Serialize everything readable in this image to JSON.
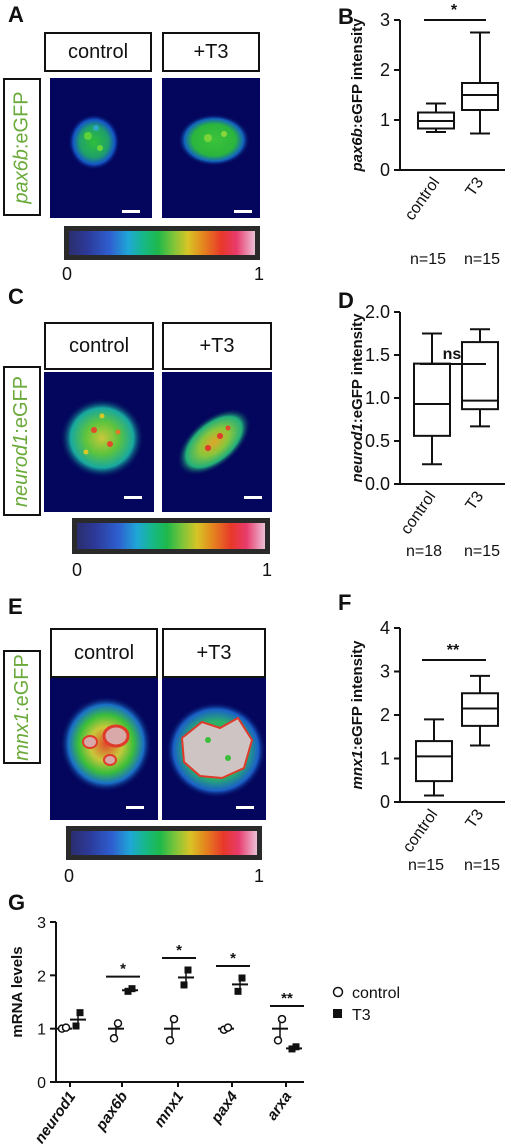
{
  "panels": {
    "A": {
      "letter": "A",
      "gene": "pax6b",
      "reporter_suffix": ":eGFP",
      "conditions": [
        "control",
        "+T3"
      ],
      "colorbar_min": "0",
      "colorbar_max": "1"
    },
    "C": {
      "letter": "C",
      "gene": "neurod1",
      "reporter_suffix": ":eGFP",
      "conditions": [
        "control",
        "+T3"
      ],
      "colorbar_min": "0",
      "colorbar_max": "1"
    },
    "E": {
      "letter": "E",
      "gene": "mnx1",
      "reporter_suffix": ":eGFP",
      "conditions": [
        "control",
        "+T3"
      ],
      "colorbar_min": "0",
      "colorbar_max": "1"
    }
  },
  "chart_data": [
    {
      "panel": "B",
      "type": "box",
      "ylabel_gene": "pax6b",
      "ylabel_rest": ":eGFP intensity",
      "categories": [
        "control",
        "T3"
      ],
      "n_labels": [
        "n=15",
        "n=15"
      ],
      "ylim": [
        0,
        3
      ],
      "yticks": [
        "0",
        "1",
        "2",
        "3"
      ],
      "boxes": [
        {
          "min": 0.76,
          "q1": 0.83,
          "median": 0.98,
          "q3": 1.15,
          "max": 1.33
        },
        {
          "min": 0.73,
          "q1": 1.2,
          "median": 1.5,
          "q3": 1.74,
          "max": 2.75
        }
      ],
      "significance": "*"
    },
    {
      "panel": "D",
      "type": "box",
      "ylabel_gene": "neurod1",
      "ylabel_rest": ":eGFP intensity",
      "categories": [
        "control",
        "T3"
      ],
      "n_labels": [
        "n=18",
        "n=15"
      ],
      "ylim": [
        0,
        2.0
      ],
      "yticks": [
        "0.0",
        "0.5",
        "1.0",
        "1.5",
        "2.0"
      ],
      "boxes": [
        {
          "min": 0.23,
          "q1": 0.56,
          "median": 0.93,
          "q3": 1.4,
          "max": 1.75
        },
        {
          "min": 0.67,
          "q1": 0.87,
          "median": 0.97,
          "q3": 1.65,
          "max": 1.8
        }
      ],
      "significance": "ns"
    },
    {
      "panel": "F",
      "type": "box",
      "ylabel_gene": "mnx1",
      "ylabel_rest": ":eGFP intensity",
      "categories": [
        "control",
        "T3"
      ],
      "n_labels": [
        "n=15",
        "n=15"
      ],
      "ylim": [
        0,
        4
      ],
      "yticks": [
        "0",
        "1",
        "2",
        "3",
        "4"
      ],
      "boxes": [
        {
          "min": 0.15,
          "q1": 0.48,
          "median": 1.05,
          "q3": 1.4,
          "max": 1.9
        },
        {
          "min": 1.3,
          "q1": 1.75,
          "median": 2.15,
          "q3": 2.5,
          "max": 2.9
        }
      ],
      "significance": "**"
    },
    {
      "panel": "G",
      "type": "scatter",
      "ylabel": "mRNA levels",
      "categories": [
        "neurod1",
        "pax6b",
        "mnx1",
        "pax4",
        "arxa"
      ],
      "ylim": [
        0,
        3
      ],
      "yticks": [
        "0",
        "1",
        "2",
        "3"
      ],
      "legend": [
        "control",
        "T3"
      ],
      "legend_position": "right",
      "series": [
        {
          "name": "control",
          "points": [
            [
              1.0,
              1.02
            ],
            [
              0.82,
              1.1
            ],
            [
              0.78,
              1.18
            ],
            [
              0.98,
              1.02
            ],
            [
              0.78,
              1.18
            ]
          ],
          "mean": [
            1.0,
            1.0,
            1.0,
            1.0,
            1.0
          ]
        },
        {
          "name": "T3",
          "points": [
            [
              1.05,
              1.3
            ],
            [
              1.7,
              1.75
            ],
            [
              1.82,
              2.1
            ],
            [
              1.7,
              1.95
            ],
            [
              0.62,
              0.66
            ]
          ],
          "mean": [
            1.17,
            1.72,
            1.96,
            1.83,
            0.63
          ]
        }
      ],
      "significance": [
        "",
        "*",
        "*",
        "*",
        "**"
      ]
    }
  ]
}
